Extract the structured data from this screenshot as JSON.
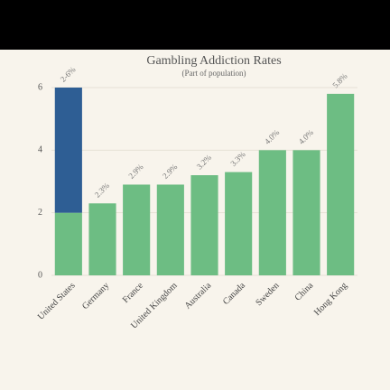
{
  "chart_data": {
    "type": "bar",
    "title": "Gambling Addiction Rates",
    "subtitle": "(Part of population)",
    "categories": [
      "United States",
      "Germany",
      "France",
      "United Kingdom",
      "Australia",
      "Canada",
      "Sweden",
      "China",
      "Hong Kong"
    ],
    "values": [
      6,
      2.3,
      2.9,
      2.9,
      3.2,
      3.3,
      4.0,
      4.0,
      5.8
    ],
    "value_labels": [
      "2-6%",
      "2.3%",
      "2.9%",
      "2.9%",
      "3.2%",
      "3.3%",
      "4.0%",
      "4.0%",
      "5.8%"
    ],
    "lows": [
      2,
      null,
      null,
      null,
      null,
      null,
      null,
      null,
      null
    ],
    "color": "#6dbd83",
    "range_color": "#2e5e94",
    "ylim": [
      0,
      6
    ],
    "yticks": [
      0,
      2,
      4,
      6
    ],
    "grid": true
  }
}
